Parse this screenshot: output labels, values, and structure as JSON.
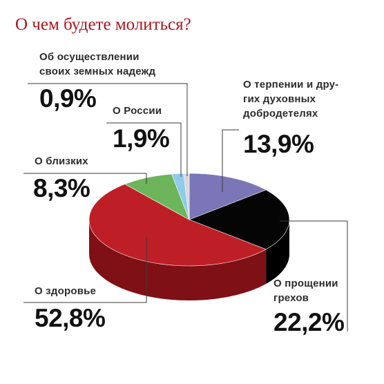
{
  "chart_data": {
    "type": "pie",
    "title": "О чем будете молиться?",
    "slices": [
      {
        "label": "О терпении и дру-\nгих духовных\nдобродетелях",
        "value": 13.9,
        "value_label": "13,9%",
        "color": "#7b76b8",
        "side_color": "#4b477c"
      },
      {
        "label": "О прощении\nгрехов",
        "value": 22.2,
        "value_label": "22,2%",
        "color": "#050505",
        "side_color": "#000000"
      },
      {
        "label": "О здоровье",
        "value": 52.8,
        "value_label": "52,8%",
        "color": "#be1f26",
        "side_color": "#7f1015"
      },
      {
        "label": "О близких",
        "value": 8.3,
        "value_label": "8,3%",
        "color": "#6cb55a",
        "side_color": "#3f7a33"
      },
      {
        "label": "О России",
        "value": 1.9,
        "value_label": "1,9%",
        "color": "#8fcbea",
        "side_color": "#5b99ba"
      },
      {
        "label": "Об осуществлении\nсвоих земных надежд",
        "value": 0.9,
        "value_label": "0,9%",
        "color": "#d8d8d8",
        "side_color": "#a0a0a0"
      }
    ]
  }
}
